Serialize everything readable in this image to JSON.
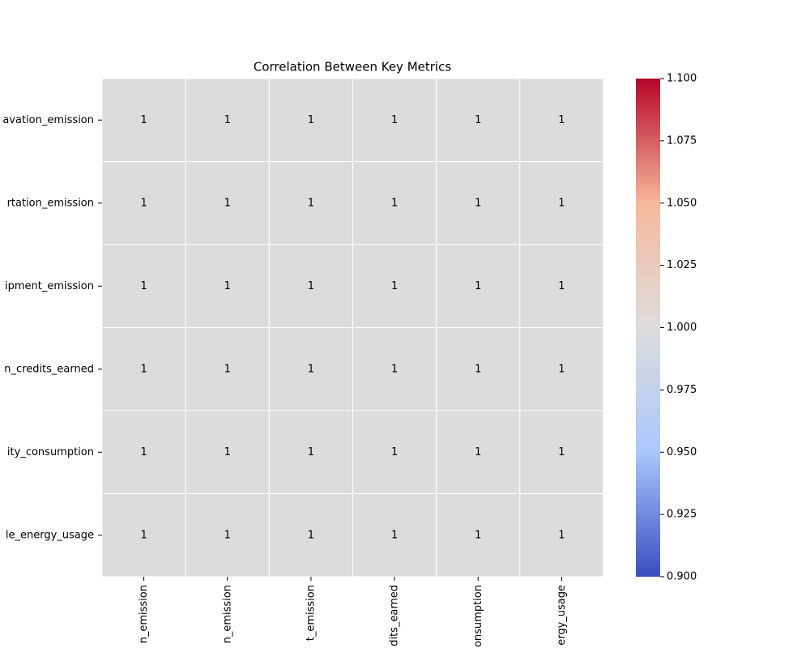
{
  "chart_data": {
    "type": "heatmap",
    "title": "Correlation Between Key Metrics",
    "rows": [
      "avation_emission",
      "rtation_emission",
      "ipment_emission",
      "n_credits_earned",
      "ity_consumption",
      "le_energy_usage"
    ],
    "columns": [
      "n_emission",
      "n_emission",
      "t_emission",
      "dits_earned",
      "onsumption",
      "ergy_usage"
    ],
    "values": [
      [
        1,
        1,
        1,
        1,
        1,
        1
      ],
      [
        1,
        1,
        1,
        1,
        1,
        1
      ],
      [
        1,
        1,
        1,
        1,
        1,
        1
      ],
      [
        1,
        1,
        1,
        1,
        1,
        1
      ],
      [
        1,
        1,
        1,
        1,
        1,
        1
      ],
      [
        1,
        1,
        1,
        1,
        1,
        1
      ]
    ],
    "zlim": [
      0.9,
      1.1
    ],
    "zticks": [
      {
        "value": 0.9,
        "label": "0.900"
      },
      {
        "value": 0.925,
        "label": "0.925"
      },
      {
        "value": 0.95,
        "label": "0.950"
      },
      {
        "value": 0.975,
        "label": "0.975"
      },
      {
        "value": 1.0,
        "label": "1.000"
      },
      {
        "value": 1.025,
        "label": "1.025"
      },
      {
        "value": 1.05,
        "label": "1.050"
      },
      {
        "value": 1.075,
        "label": "1.075"
      },
      {
        "value": 1.1,
        "label": "1.100"
      }
    ],
    "colormap": [
      "#3b4cc0",
      "#aac7fd",
      "#dddcdc",
      "#f7b89c",
      "#b40426"
    ],
    "annotate": true
  }
}
